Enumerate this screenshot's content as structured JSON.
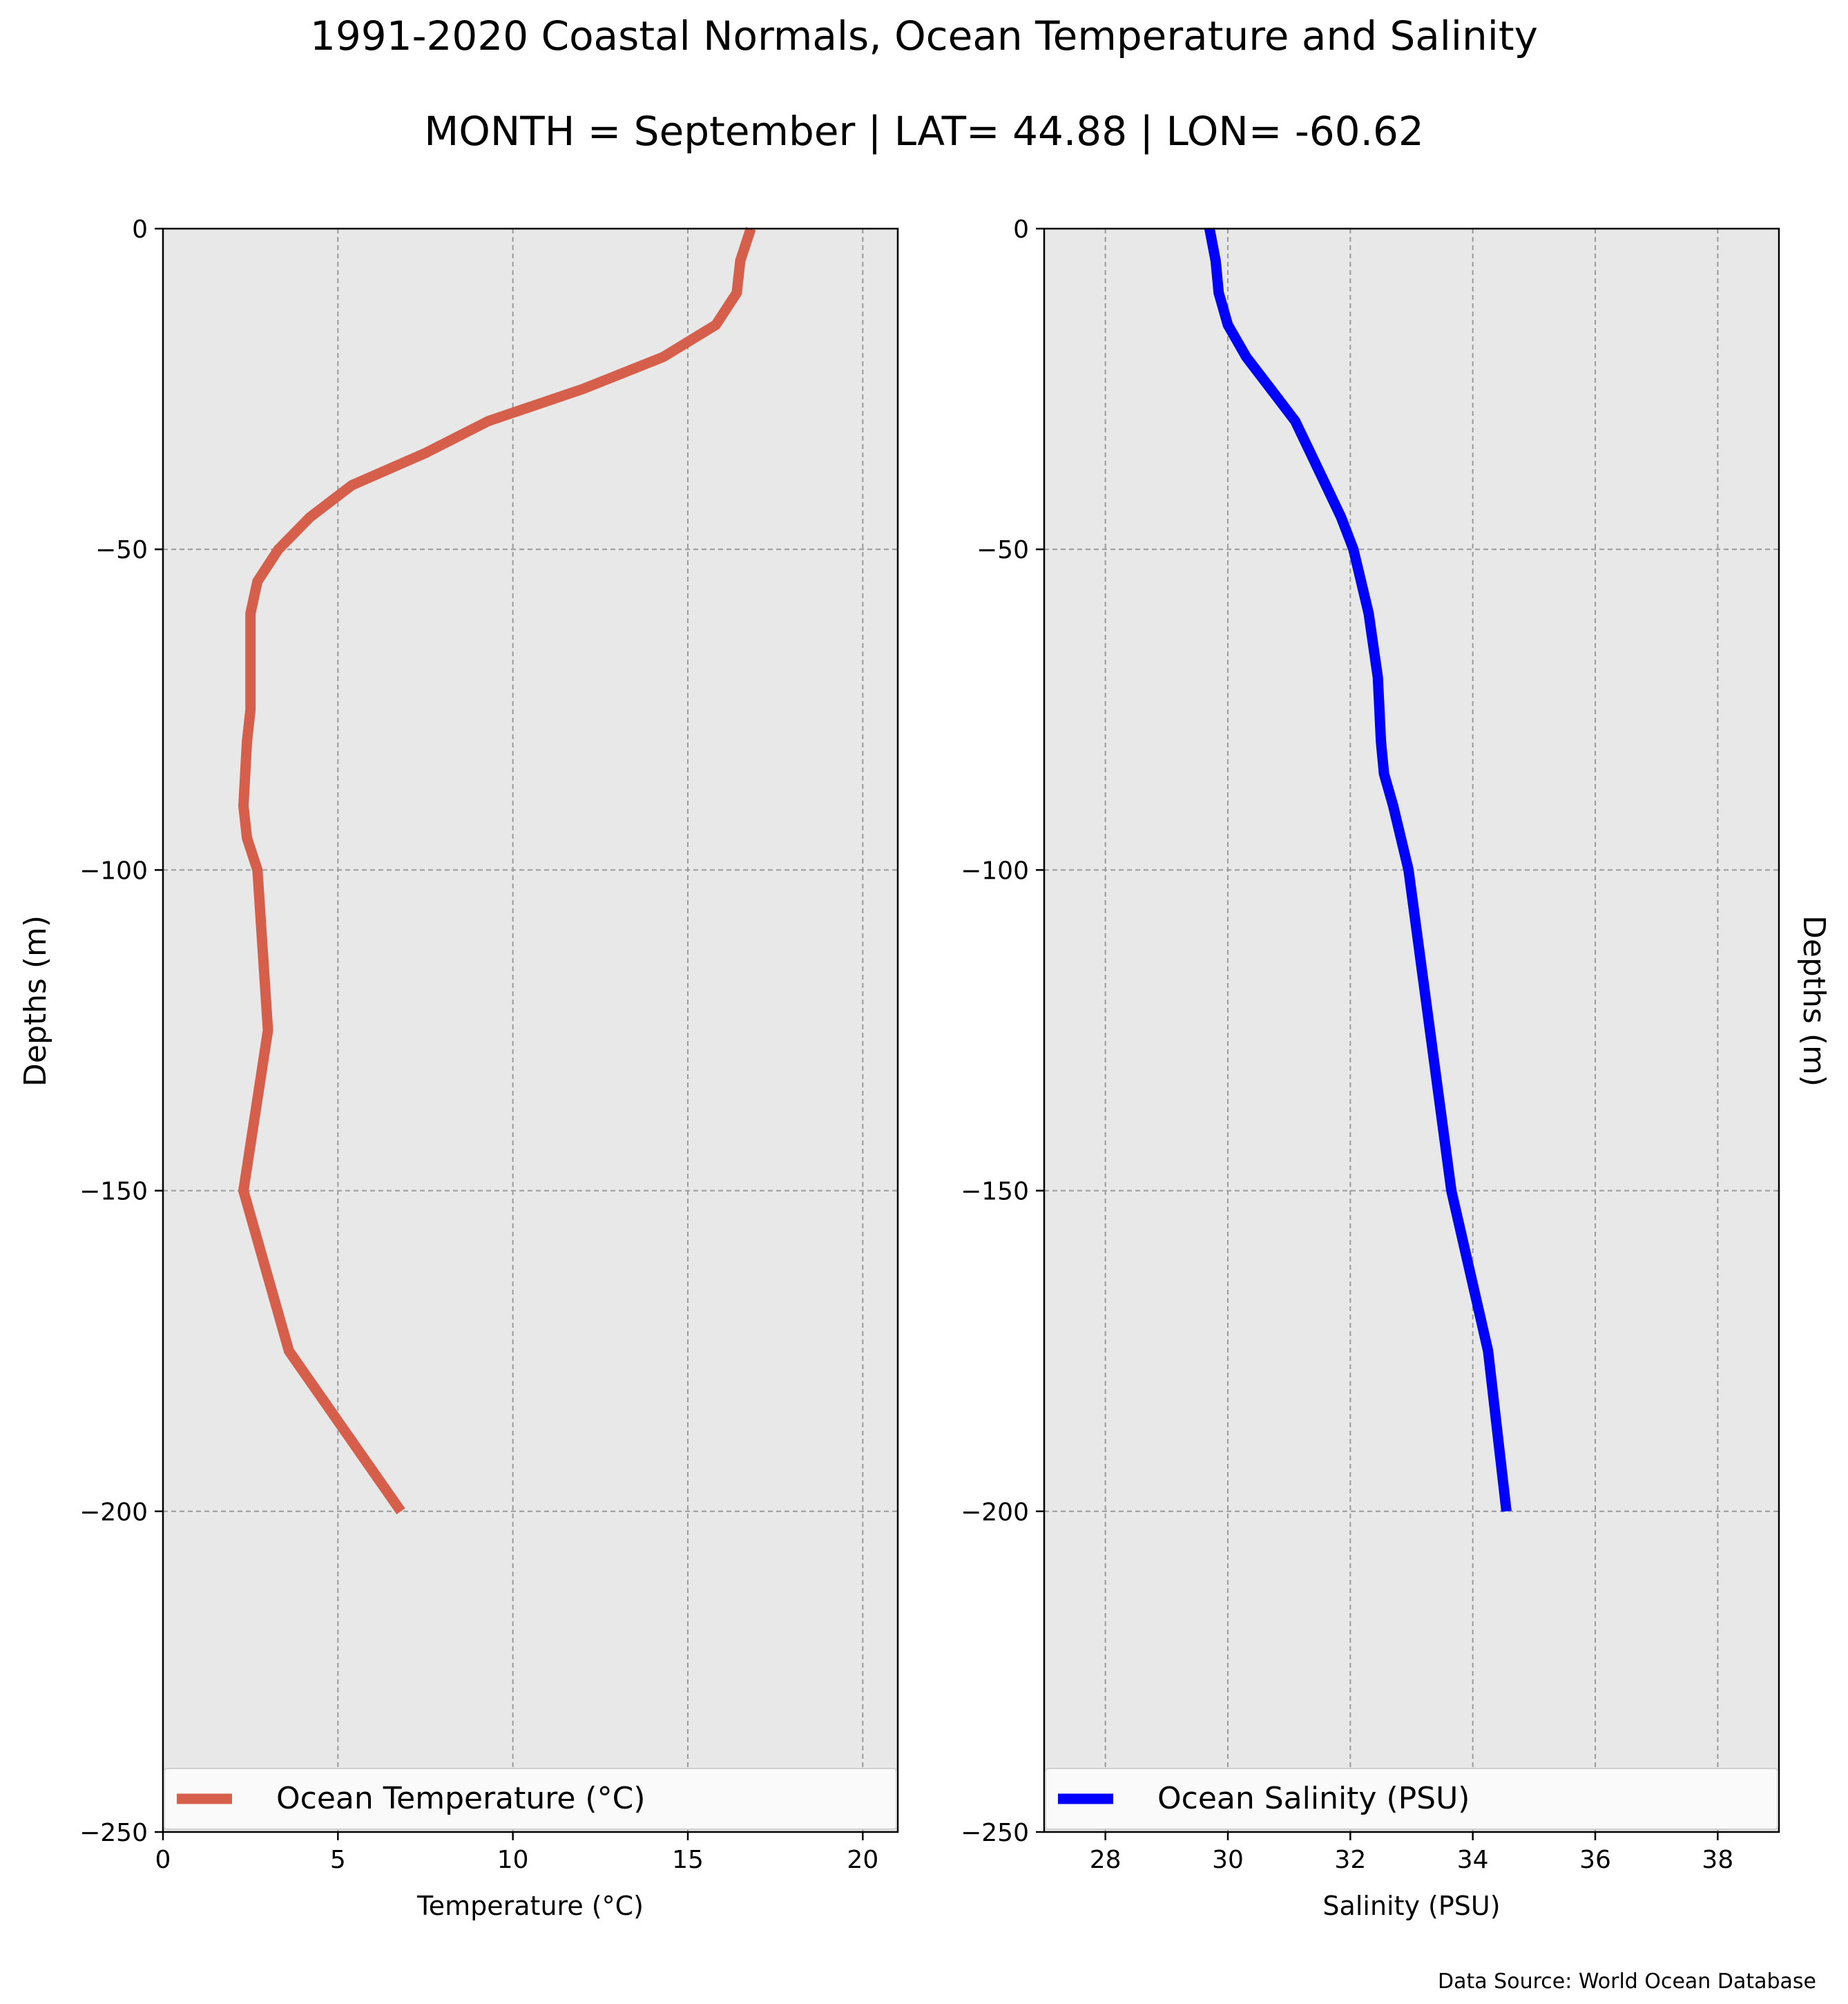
{
  "figure": {
    "title": "1991-2020 Coastal Normals, Ocean Temperature and Salinity",
    "subtitle": "MONTH = September | LAT= 44.88 | LON= -60.62",
    "source_note": "Data Source: World Ocean Database"
  },
  "colors": {
    "plot_background": "#e8e8e8",
    "grid": "#9a9a9a",
    "temperature_line": "#d65f4b",
    "salinity_line": "#0000ff"
  },
  "chart_data": [
    {
      "type": "line",
      "id": "temperature",
      "xlabel": "Temperature (°C)",
      "ylabel": "Depths (m)",
      "xlim": [
        0,
        21
      ],
      "ylim": [
        -250,
        0
      ],
      "xticks": [
        0,
        5,
        10,
        15,
        20
      ],
      "xtick_labels": [
        "0",
        "5",
        "10",
        "15",
        "20"
      ],
      "yticks": [
        0,
        -50,
        -100,
        -150,
        -200,
        -250
      ],
      "ytick_labels": [
        "0",
        "−50",
        "−100",
        "−150",
        "−200",
        "−250"
      ],
      "grid": true,
      "legend_position": "bottom",
      "series": [
        {
          "name": "Ocean Temperature (°C)",
          "x": [
            16.8,
            16.5,
            16.4,
            15.8,
            14.3,
            12.0,
            9.3,
            7.5,
            5.4,
            4.2,
            3.3,
            2.7,
            2.5,
            2.5,
            2.5,
            2.4,
            2.3,
            2.4,
            2.7,
            3.0,
            2.3,
            3.6,
            6.8
          ],
          "y": [
            0,
            -5,
            -10,
            -15,
            -20,
            -25,
            -30,
            -35,
            -40,
            -45,
            -50,
            -55,
            -60,
            -65,
            -75,
            -80,
            -90,
            -95,
            -100,
            -125,
            -150,
            -175,
            -200
          ]
        }
      ]
    },
    {
      "type": "line",
      "id": "salinity",
      "xlabel": "Salinity (PSU)",
      "ylabel": "Depths (m)",
      "xlim": [
        27,
        39
      ],
      "ylim": [
        -250,
        0
      ],
      "xticks": [
        28,
        30,
        32,
        34,
        36,
        38
      ],
      "xtick_labels": [
        "28",
        "30",
        "32",
        "34",
        "36",
        "38"
      ],
      "yticks": [
        0,
        -50,
        -100,
        -150,
        -200,
        -250
      ],
      "ytick_labels": [
        "0",
        "−50",
        "−100",
        "−150",
        "−200",
        "−250"
      ],
      "grid": true,
      "legend_position": "bottom",
      "series": [
        {
          "name": "Ocean Salinity (PSU)",
          "x": [
            29.7,
            29.8,
            29.85,
            30.0,
            30.3,
            30.7,
            31.1,
            31.35,
            31.6,
            31.85,
            32.05,
            32.3,
            32.45,
            32.5,
            32.55,
            32.7,
            32.95,
            33.3,
            33.65,
            34.25,
            34.55
          ],
          "y": [
            0,
            -5,
            -10,
            -15,
            -20,
            -25,
            -30,
            -35,
            -40,
            -45,
            -50,
            -60,
            -70,
            -80,
            -85,
            -90,
            -100,
            -125,
            -150,
            -175,
            -200
          ]
        }
      ]
    }
  ]
}
